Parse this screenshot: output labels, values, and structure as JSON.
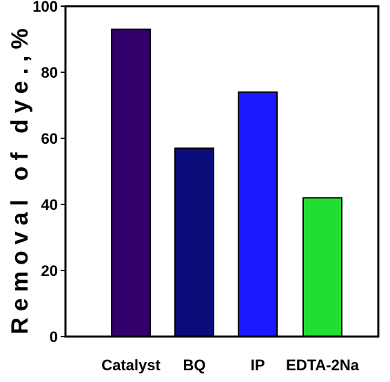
{
  "chart_data": {
    "type": "bar",
    "categories": [
      "Catalyst",
      "BQ",
      "IP",
      "EDTA-2Na"
    ],
    "values": [
      93,
      57,
      74,
      42
    ],
    "colors": [
      "#33006b",
      "#0b0b7a",
      "#1a1aff",
      "#22dd33"
    ],
    "title": "",
    "xlabel": "",
    "ylabel": "Removal of dye.,%",
    "ylim": [
      0,
      100
    ],
    "yticks": [
      "0",
      "20",
      "40",
      "60",
      "80",
      "100"
    ],
    "grid": false,
    "legend": "none"
  }
}
